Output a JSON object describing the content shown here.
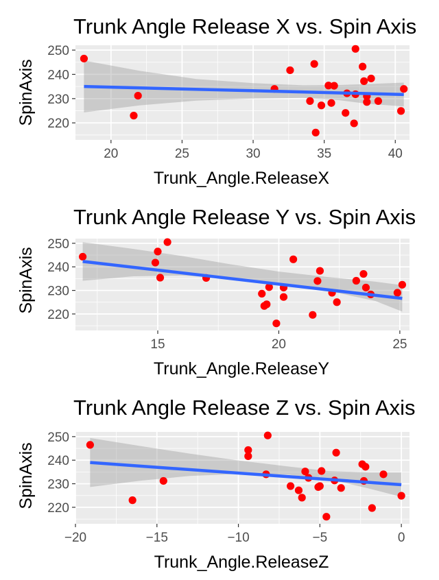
{
  "chart_data": [
    {
      "type": "scatter",
      "title": "Trunk Angle Release X vs. Spin Axis",
      "xlabel": "Trunk_Angle.ReleaseX",
      "ylabel": "SpinAxis",
      "xlim": [
        17.5,
        41.0
      ],
      "ylim": [
        213,
        252
      ],
      "xticks": [
        20,
        25,
        30,
        35,
        40
      ],
      "yticks": [
        220,
        230,
        240,
        250
      ],
      "point_color": "#ff0000",
      "line_color": "#3366ff",
      "band_color": "#999999",
      "panel_bg": "#ebebeb",
      "grid": true,
      "points": [
        [
          18.1,
          246.5
        ],
        [
          21.6,
          223.0
        ],
        [
          21.9,
          231.2
        ],
        [
          31.5,
          234.0
        ],
        [
          32.6,
          241.7
        ],
        [
          34.0,
          229.0
        ],
        [
          34.3,
          244.3
        ],
        [
          34.4,
          216.0
        ],
        [
          34.8,
          227.2
        ],
        [
          35.3,
          235.4
        ],
        [
          35.5,
          228.2
        ],
        [
          35.7,
          235.3
        ],
        [
          36.5,
          224.1
        ],
        [
          36.6,
          232.2
        ],
        [
          37.1,
          219.8
        ],
        [
          37.2,
          231.8
        ],
        [
          37.2,
          250.5
        ],
        [
          37.7,
          243.2
        ],
        [
          37.8,
          237.2
        ],
        [
          38.0,
          231.0
        ],
        [
          38.0,
          228.6
        ],
        [
          38.3,
          238.3
        ],
        [
          38.8,
          229.0
        ],
        [
          40.4,
          224.9
        ],
        [
          40.6,
          234.0
        ]
      ],
      "fit": {
        "x": [
          18.1,
          40.6
        ],
        "y": [
          235.0,
          231.7
        ]
      },
      "band": {
        "x": [
          18.1,
          22.0,
          26.0,
          30.0,
          33.5,
          36.0,
          38.0,
          40.6
        ],
        "lower": [
          224.3,
          227.2,
          229.2,
          230.0,
          230.3,
          229.4,
          227.9,
          226.8
        ],
        "upper": [
          245.7,
          241.5,
          238.1,
          236.4,
          235.5,
          235.6,
          236.0,
          236.6
        ]
      }
    },
    {
      "type": "scatter",
      "title": "Trunk Angle Release Y vs. Spin Axis",
      "xlabel": "Trunk_Angle.ReleaseY",
      "ylabel": "SpinAxis",
      "xlim": [
        11.6,
        25.4
      ],
      "ylim": [
        213,
        252
      ],
      "xticks": [
        15,
        20,
        25
      ],
      "yticks": [
        220,
        230,
        240,
        250
      ],
      "point_color": "#ff0000",
      "line_color": "#3366ff",
      "band_color": "#999999",
      "panel_bg": "#ebebeb",
      "grid": true,
      "points": [
        [
          11.9,
          244.3
        ],
        [
          14.9,
          241.8
        ],
        [
          15.0,
          246.5
        ],
        [
          15.1,
          235.4
        ],
        [
          15.4,
          250.5
        ],
        [
          17.0,
          235.3
        ],
        [
          19.3,
          228.6
        ],
        [
          19.4,
          223.4
        ],
        [
          19.5,
          224.1
        ],
        [
          19.6,
          231.4
        ],
        [
          19.9,
          216.0
        ],
        [
          20.2,
          231.2
        ],
        [
          20.2,
          227.2
        ],
        [
          20.6,
          243.2
        ],
        [
          21.4,
          219.6
        ],
        [
          21.6,
          234.0
        ],
        [
          21.7,
          238.3
        ],
        [
          22.2,
          229.0
        ],
        [
          22.4,
          225.0
        ],
        [
          23.2,
          234.1
        ],
        [
          23.5,
          237.0
        ],
        [
          23.6,
          231.2
        ],
        [
          23.8,
          228.3
        ],
        [
          24.9,
          229.0
        ],
        [
          25.1,
          232.4
        ]
      ],
      "fit": {
        "x": [
          11.9,
          25.1
        ],
        "y": [
          242.3,
          226.6
        ]
      },
      "band": {
        "x": [
          11.9,
          14.0,
          16.0,
          18.0,
          20.0,
          22.0,
          24.0,
          25.1
        ],
        "lower": [
          234.1,
          236.0,
          236.3,
          235.0,
          232.8,
          229.9,
          225.5,
          221.0
        ],
        "upper": [
          250.5,
          247.6,
          244.6,
          241.1,
          238.0,
          235.7,
          233.7,
          232.2
        ]
      }
    },
    {
      "type": "scatter",
      "title": "Trunk Angle Release Z vs. Spin Axis",
      "xlabel": "Trunk_Angle.ReleaseZ",
      "ylabel": "SpinAxis",
      "xlim": [
        -20.0,
        0.5
      ],
      "ylim": [
        213,
        252
      ],
      "xticks": [
        -20,
        -15,
        -10,
        -5,
        0
      ],
      "xtick_labels": [
        "−20",
        "−15",
        "−10",
        "−5",
        "0"
      ],
      "yticks": [
        220,
        230,
        240,
        250
      ],
      "point_color": "#ff0000",
      "line_color": "#3366ff",
      "band_color": "#999999",
      "panel_bg": "#ebebeb",
      "grid": true,
      "points": [
        [
          -19.1,
          246.5
        ],
        [
          -16.5,
          223.0
        ],
        [
          -14.6,
          231.2
        ],
        [
          -9.4,
          244.3
        ],
        [
          -9.4,
          241.7
        ],
        [
          -8.2,
          250.5
        ],
        [
          -8.3,
          234.0
        ],
        [
          -6.8,
          229.0
        ],
        [
          -6.3,
          227.2
        ],
        [
          -6.1,
          224.1
        ],
        [
          -5.9,
          235.2
        ],
        [
          -5.7,
          232.5
        ],
        [
          -5.1,
          228.6
        ],
        [
          -5.0,
          229.0
        ],
        [
          -4.9,
          235.4
        ],
        [
          -4.6,
          216.0
        ],
        [
          -4.1,
          231.4
        ],
        [
          -4.0,
          243.2
        ],
        [
          -3.7,
          228.2
        ],
        [
          -2.4,
          238.3
        ],
        [
          -2.3,
          231.2
        ],
        [
          -2.2,
          237.2
        ],
        [
          -1.8,
          219.7
        ],
        [
          -1.1,
          234.0
        ],
        [
          0.0,
          224.9
        ]
      ],
      "fit": {
        "x": [
          -19.1,
          0.0
        ],
        "y": [
          239.0,
          229.6
        ]
      },
      "band": {
        "x": [
          -19.1,
          -16.0,
          -13.0,
          -10.0,
          -7.0,
          -4.5,
          -2.0,
          0.0
        ],
        "lower": [
          228.6,
          231.3,
          233.3,
          234.2,
          233.9,
          232.0,
          228.0,
          224.4
        ],
        "upper": [
          249.4,
          246.0,
          242.8,
          239.9,
          237.4,
          235.4,
          234.8,
          234.8
        ]
      }
    }
  ]
}
